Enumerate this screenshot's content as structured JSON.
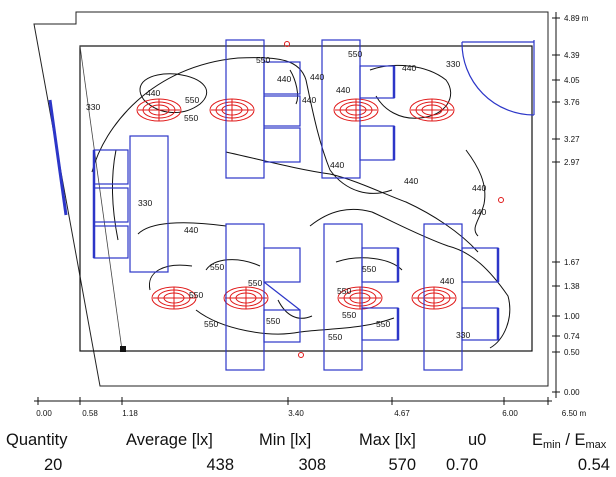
{
  "scale": {
    "right_labels": [
      "4.89 m",
      "4.39",
      "4.05",
      "3.76",
      "3.27",
      "2.97",
      "1.67",
      "1.38",
      "1.00",
      "0.74",
      "0.50",
      "0.00"
    ],
    "bottom_labels": [
      "0.00",
      "0.58",
      "1.18",
      "3.40",
      "4.67",
      "6.00",
      "6.50 m"
    ]
  },
  "contour_labels": {
    "c440_a": "440",
    "c550_a": "550",
    "c550_b": "550",
    "c550_c": "550",
    "c440_b": "440",
    "c440_c": "440",
    "c330_a": "330",
    "c550_d": "550",
    "c440_d": "440",
    "c330_b": "330",
    "c440_e": "440",
    "c440_f": "440",
    "c330_c": "330",
    "c440_g": "440",
    "c440_h": "440",
    "c440_i": "440",
    "c440_j": "440",
    "c550_e": "550",
    "c550_f": "550",
    "c550_g": "550",
    "c550_h": "550",
    "c550_i": "550",
    "c550_j": "550",
    "c550_k": "550",
    "c550_l": "550",
    "c550_m": "550",
    "c440_k": "440",
    "c330_d": "330",
    "c550_n": "550"
  },
  "stats": {
    "headers": {
      "quantity": "Quantity",
      "average": "Average [lx]",
      "min": "Min [lx]",
      "max": "Max [lx]",
      "u0": "u0",
      "emin": "E",
      "emin_sub": "min",
      "slash": " / E",
      "emax_sub": "max"
    },
    "values": {
      "quantity": "20",
      "average": "438",
      "min": "308",
      "max": "570",
      "u0": "0.70",
      "ratio": "0.54"
    }
  },
  "colors": {
    "furniture": "#2c36c8",
    "luminaire": "#e01818",
    "contour": "#111111"
  }
}
